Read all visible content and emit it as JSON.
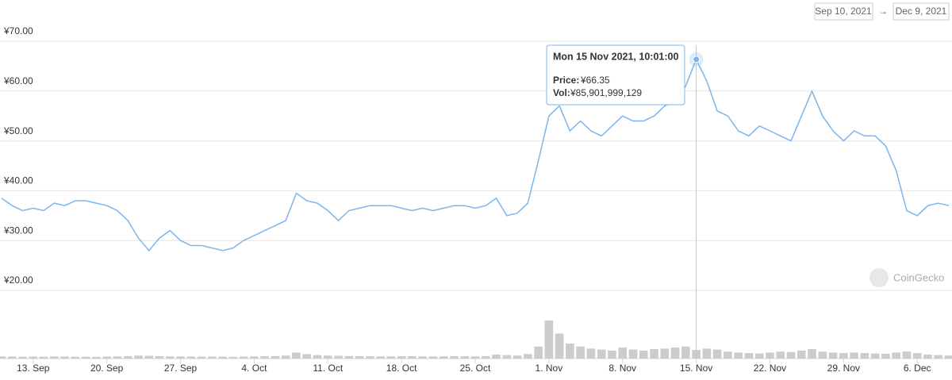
{
  "chart_data": {
    "type": "line",
    "range_start": "Sep 10, 2021",
    "range_separator": "→",
    "range_end": "Dec 9, 2021",
    "watermark": "CoinGecko",
    "x": [
      "2021-09-10",
      "2021-09-11",
      "2021-09-12",
      "2021-09-13",
      "2021-09-14",
      "2021-09-15",
      "2021-09-16",
      "2021-09-17",
      "2021-09-18",
      "2021-09-19",
      "2021-09-20",
      "2021-09-21",
      "2021-09-22",
      "2021-09-23",
      "2021-09-24",
      "2021-09-25",
      "2021-09-26",
      "2021-09-27",
      "2021-09-28",
      "2021-09-29",
      "2021-09-30",
      "2021-10-01",
      "2021-10-02",
      "2021-10-03",
      "2021-10-04",
      "2021-10-05",
      "2021-10-06",
      "2021-10-07",
      "2021-10-08",
      "2021-10-09",
      "2021-10-10",
      "2021-10-11",
      "2021-10-12",
      "2021-10-13",
      "2021-10-14",
      "2021-10-15",
      "2021-10-16",
      "2021-10-17",
      "2021-10-18",
      "2021-10-19",
      "2021-10-20",
      "2021-10-21",
      "2021-10-22",
      "2021-10-23",
      "2021-10-24",
      "2021-10-25",
      "2021-10-26",
      "2021-10-27",
      "2021-10-28",
      "2021-10-29",
      "2021-10-30",
      "2021-10-31",
      "2021-11-01",
      "2021-11-02",
      "2021-11-03",
      "2021-11-04",
      "2021-11-05",
      "2021-11-06",
      "2021-11-07",
      "2021-11-08",
      "2021-11-09",
      "2021-11-10",
      "2021-11-11",
      "2021-11-12",
      "2021-11-13",
      "2021-11-14",
      "2021-11-15",
      "2021-11-16",
      "2021-11-17",
      "2021-11-18",
      "2021-11-19",
      "2021-11-20",
      "2021-11-21",
      "2021-11-22",
      "2021-11-23",
      "2021-11-24",
      "2021-11-25",
      "2021-11-26",
      "2021-11-27",
      "2021-11-28",
      "2021-11-29",
      "2021-11-30",
      "2021-12-01",
      "2021-12-02",
      "2021-12-03",
      "2021-12-04",
      "2021-12-05",
      "2021-12-06",
      "2021-12-07",
      "2021-12-08",
      "2021-12-09"
    ],
    "series": [
      {
        "color": "#7cb5ec",
        "values": [
          38.5,
          37,
          36,
          36.5,
          36,
          37.5,
          37,
          38,
          38,
          37.5,
          37,
          36,
          34,
          30.5,
          28,
          30.5,
          32,
          30,
          29,
          29,
          28.5,
          28,
          28.5,
          30,
          31,
          32,
          33,
          34,
          39.5,
          38,
          37.5,
          36,
          34,
          36,
          36.5,
          37,
          37,
          37,
          36.5,
          36,
          36.5,
          36,
          36.5,
          37,
          37,
          36.5,
          37,
          38.5,
          35,
          35.5,
          37.5,
          46,
          55,
          57,
          52,
          54,
          52,
          51,
          53,
          55,
          54,
          54,
          55,
          57,
          58,
          61,
          66.35,
          62,
          56,
          55,
          52,
          51,
          53,
          52,
          51,
          50,
          55,
          60,
          55,
          52,
          50,
          52,
          51,
          51,
          49,
          44,
          36,
          35,
          37,
          37.5,
          37
        ]
      },
      {
        "color": "#cccccc",
        "axis": "y2",
        "values": [
          22000000000,
          20000000000,
          18000000000,
          20000000000,
          19000000000,
          21000000000,
          20000000000,
          19000000000,
          18000000000,
          17000000000,
          20000000000,
          22000000000,
          25000000000,
          30000000000,
          28000000000,
          24000000000,
          22000000000,
          21000000000,
          20000000000,
          19000000000,
          20000000000,
          19000000000,
          18000000000,
          20000000000,
          22000000000,
          24000000000,
          25000000000,
          30000000000,
          60000000000,
          45000000000,
          35000000000,
          30000000000,
          28000000000,
          25000000000,
          24000000000,
          23000000000,
          22000000000,
          22000000000,
          23000000000,
          24000000000,
          22000000000,
          21000000000,
          22000000000,
          24000000000,
          23000000000,
          22000000000,
          24000000000,
          40000000000,
          35000000000,
          30000000000,
          45000000000,
          120000000000,
          380000000000,
          250000000000,
          150000000000,
          120000000000,
          100000000000,
          90000000000,
          80000000000,
          110000000000,
          90000000000,
          80000000000,
          95000000000,
          100000000000,
          110000000000,
          120000000000,
          85901999129,
          100000000000,
          90000000000,
          70000000000,
          60000000000,
          55000000000,
          50000000000,
          60000000000,
          70000000000,
          65000000000,
          80000000000,
          95000000000,
          70000000000,
          60000000000,
          55000000000,
          60000000000,
          55000000000,
          50000000000,
          48000000000,
          60000000000,
          70000000000,
          55000000000,
          40000000000,
          35000000000,
          30000000000
        ]
      }
    ],
    "xlim": [
      "2021-09-10",
      "2021-12-09"
    ],
    "xticks": [
      {
        "value": "2021-09-13",
        "label": "13. Sep"
      },
      {
        "value": "2021-09-20",
        "label": "20. Sep"
      },
      {
        "value": "2021-09-27",
        "label": "27. Sep"
      },
      {
        "value": "2021-10-04",
        "label": "4. Oct"
      },
      {
        "value": "2021-10-11",
        "label": "11. Oct"
      },
      {
        "value": "2021-10-18",
        "label": "18. Oct"
      },
      {
        "value": "2021-10-25",
        "label": "25. Oct"
      },
      {
        "value": "2021-11-01",
        "label": "1. Nov"
      },
      {
        "value": "2021-11-08",
        "label": "8. Nov"
      },
      {
        "value": "2021-11-15",
        "label": "15. Nov"
      },
      {
        "value": "2021-11-22",
        "label": "22. Nov"
      },
      {
        "value": "2021-11-29",
        "label": "29. Nov"
      },
      {
        "value": "2021-12-06",
        "label": "6. Dec"
      }
    ],
    "ylim": [
      20,
      70
    ],
    "yticks": [
      {
        "value": 20,
        "label": "¥20.00"
      },
      {
        "value": 30,
        "label": "¥30.00"
      },
      {
        "value": 40,
        "label": "¥40.00"
      },
      {
        "value": 50,
        "label": "¥50.00"
      },
      {
        "value": 60,
        "label": "¥60.00"
      },
      {
        "value": 70,
        "label": "¥70.00"
      }
    ],
    "grid": true,
    "tooltip": {
      "index": 66,
      "title": "Mon 15 Nov 2021, 10:01:00",
      "price_label": "Price:",
      "price": "¥66.35",
      "vol_label": "Vol:",
      "vol": "¥85,901,999,129"
    }
  }
}
